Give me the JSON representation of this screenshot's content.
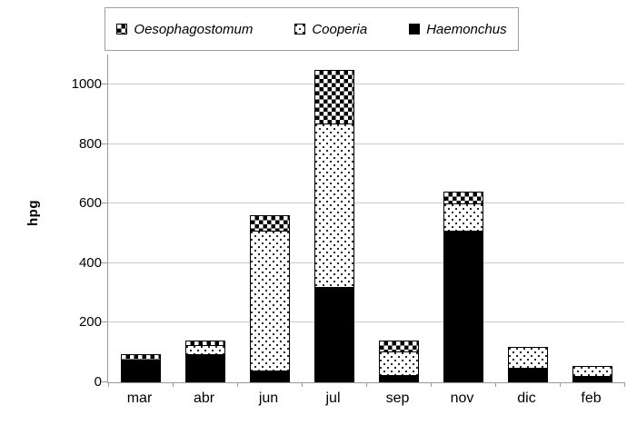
{
  "ylabel": "hpg",
  "legend": {
    "items": [
      {
        "label": "Oesophagostomum",
        "pattern": "checker"
      },
      {
        "label": "Cooperia",
        "pattern": "dots"
      },
      {
        "label": "Haemonchus",
        "pattern": "solid"
      }
    ]
  },
  "colors": {
    "bar_fill": "#000000",
    "dot_fill": "#2b2b2b",
    "gridline": "#c9c9c9",
    "axis": "#9a9a9a"
  },
  "chart_data": {
    "type": "bar",
    "subtype": "stacked-vertical",
    "categories": [
      "mar",
      "abr",
      "jun",
      "jul",
      "sep",
      "nov",
      "dic",
      "feb"
    ],
    "series": [
      {
        "name": "Haemonchus",
        "pattern": "solid",
        "values": [
          75,
          95,
          40,
          320,
          25,
          510,
          50,
          20
        ]
      },
      {
        "name": "Cooperia",
        "pattern": "dots",
        "values": [
          0,
          30,
          470,
          550,
          80,
          90,
          70,
          35
        ]
      },
      {
        "name": "Oesophagostomum",
        "pattern": "checker",
        "values": [
          20,
          15,
          50,
          180,
          35,
          40,
          0,
          0
        ]
      }
    ],
    "stack_totals": [
      95,
      140,
      560,
      1050,
      140,
      640,
      120,
      55
    ],
    "title": "",
    "xlabel": "",
    "ylabel": "hpg",
    "yticks": [
      0,
      200,
      400,
      600,
      800,
      1000
    ],
    "ylim": [
      0,
      1100
    ],
    "grid": true,
    "legend_position": "top",
    "legend_order": [
      "Oesophagostomum",
      "Cooperia",
      "Haemonchus"
    ]
  }
}
